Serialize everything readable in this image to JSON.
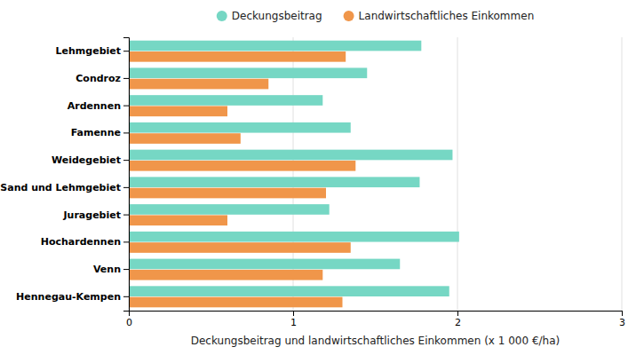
{
  "chart_data": {
    "type": "bar",
    "orientation": "horizontal",
    "categories": [
      "Lehmgebiet",
      "Condroz",
      "Ardennen",
      "Famenne",
      "Weidegebiet",
      "Sand und Lehmgebiet",
      "Juragebiet",
      "Hochardennen",
      "Venn",
      "Hennegau-Kempen"
    ],
    "series": [
      {
        "name": "Deckungsbeitrag",
        "color": "#76d7c4",
        "values": [
          1.78,
          1.45,
          1.18,
          1.35,
          1.97,
          1.77,
          1.22,
          2.01,
          1.65,
          1.95
        ]
      },
      {
        "name": "Landwirtschaftliches Einkommen",
        "color": "#f0964a",
        "values": [
          1.32,
          0.85,
          0.6,
          0.68,
          1.38,
          1.2,
          0.6,
          1.35,
          1.18,
          1.3
        ]
      }
    ],
    "xlabel": "Deckungsbeitrag und landwirtschaftliches Einkommen (x 1 000 €/ha)",
    "xlim": [
      0,
      3
    ],
    "xticks": [
      0,
      1,
      2,
      3
    ],
    "grid": true,
    "legend": "top"
  }
}
